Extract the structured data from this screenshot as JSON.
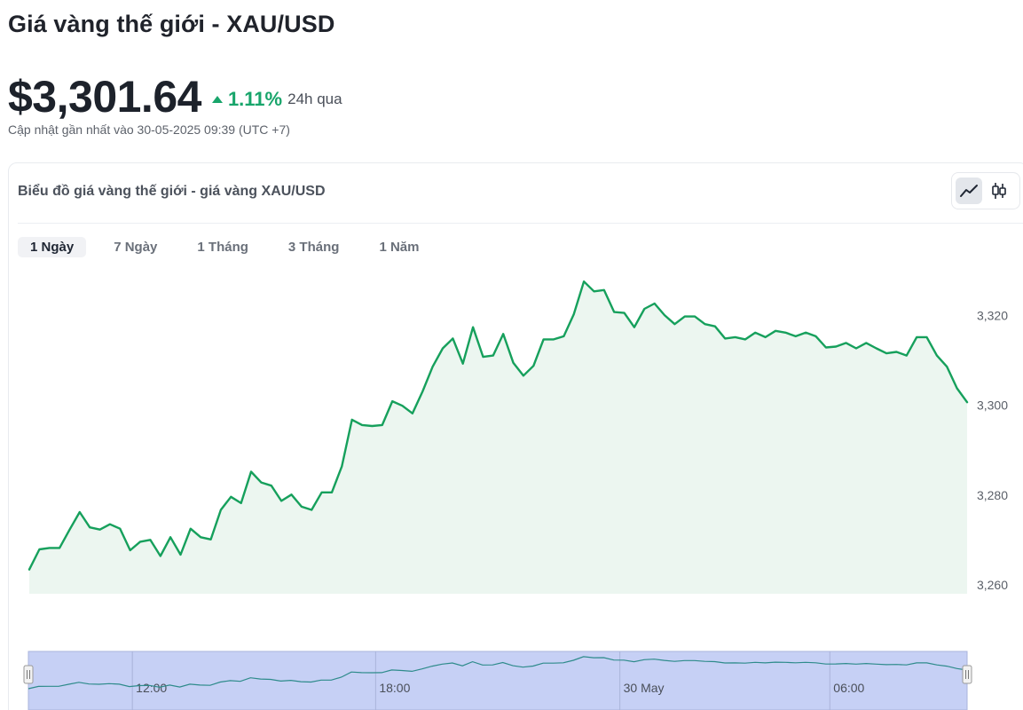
{
  "page": {
    "title": "Giá vàng thế giới - XAU/USD"
  },
  "price": {
    "value": "$3,301.64",
    "change": "1.11%",
    "period": "24h qua",
    "updated": "Cập nhật gần nhất vào 30-05-2025 09:39 (UTC +7)"
  },
  "card": {
    "title": "Biểu đồ giá vàng thế giới - giá vàng XAU/USD",
    "toggle": [
      {
        "icon": "line-chart-icon",
        "active": true
      },
      {
        "icon": "candlestick-icon",
        "active": false
      }
    ]
  },
  "tabs": [
    {
      "label": "1 Ngày",
      "active": true
    },
    {
      "label": "7 Ngày",
      "active": false
    },
    {
      "label": "1 Tháng",
      "active": false
    },
    {
      "label": "3 Tháng",
      "active": false
    },
    {
      "label": "1 Năm",
      "active": false
    }
  ],
  "colors": {
    "line": "#16a05c",
    "area": "#ecf6f0",
    "navigator_bg": "#c6d0f5",
    "navigator_line": "#2e8b8b",
    "up": "#18a56b"
  },
  "chart_data": {
    "type": "area",
    "title": "",
    "xlabel": "",
    "ylabel": "",
    "y_ticks": [
      3260,
      3280,
      3300,
      3320
    ],
    "y_tick_labels": [
      "3,260",
      "3,280",
      "3,300",
      "3,320"
    ],
    "ylim": [
      3258,
      3331
    ],
    "y_axis_position": "right",
    "grid": false,
    "legend": "none",
    "series": [
      {
        "values": [
          3263.4,
          3267.9,
          3268.2,
          3268.2,
          3272.3,
          3276.2,
          3272.8,
          3272.3,
          3273.5,
          3272.5,
          3267.7,
          3269.6,
          3270,
          3266.4,
          3270.6,
          3266.7,
          3272.5,
          3270.6,
          3270.1,
          3276.7,
          3279.6,
          3278.2,
          3285.2,
          3282.8,
          3282.1,
          3278.7,
          3280.1,
          3277.4,
          3276.7,
          3280.6,
          3280.6,
          3286.4,
          3296.8,
          3295.6,
          3295.4,
          3295.6,
          3300.9,
          3299.9,
          3298.2,
          3303.1,
          3308.6,
          3312.7,
          3314.9,
          3309.3,
          3317.4,
          3310.8,
          3311.1,
          3315.9,
          3309.5,
          3306.6,
          3308.8,
          3314.7,
          3314.7,
          3315.4,
          3320.3,
          3327.6,
          3325.4,
          3325.7,
          3320.8,
          3320.6,
          3317.4,
          3321.5,
          3322.7,
          3320.1,
          3318.1,
          3319.8,
          3319.8,
          3318.1,
          3317.6,
          3314.9,
          3315.2,
          3314.7,
          3316.2,
          3315.2,
          3316.6,
          3316.2,
          3315.4,
          3316.2,
          3315.4,
          3312.9,
          3313.1,
          3313.9,
          3312.7,
          3313.9,
          3312.7,
          3311.6,
          3311.9,
          3311.1,
          3315.2,
          3315.2,
          3311.1,
          3308.6,
          3303.8,
          3300.7
        ]
      }
    ],
    "navigator": {
      "ticks": [
        {
          "label": "12:00",
          "index": 10.3
        },
        {
          "label": "18:00",
          "index": 34.4
        },
        {
          "label": "30 May",
          "index": 58.6
        },
        {
          "label": "06:00",
          "index": 79.4
        }
      ]
    }
  }
}
